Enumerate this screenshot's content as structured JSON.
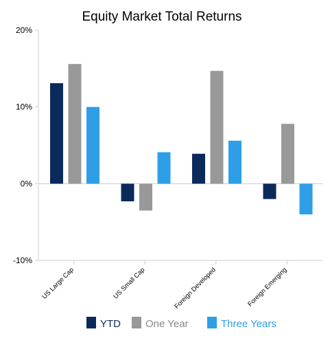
{
  "chart_data": {
    "type": "bar",
    "title": "Equity Market Total Returns",
    "xlabel": "",
    "ylabel": "",
    "categories": [
      "US Large Cap",
      "US Small Cap",
      "Foreign Developed",
      "Foreign Emerging"
    ],
    "series": [
      {
        "name": "YTD",
        "color": "#0b2a5c",
        "values": [
          13.1,
          -2.3,
          3.9,
          -2.0
        ]
      },
      {
        "name": "One Year",
        "color": "#999999",
        "values": [
          15.6,
          -3.5,
          14.7,
          7.8
        ]
      },
      {
        "name": "Three Years",
        "color": "#2e9fe6",
        "values": [
          10.0,
          4.1,
          5.6,
          -4.0
        ]
      }
    ],
    "ylim": [
      -10,
      20
    ],
    "yticks": [
      {
        "value": -10,
        "label": "-10%"
      },
      {
        "value": 0,
        "label": "0%"
      },
      {
        "value": 10,
        "label": "10%"
      },
      {
        "value": 20,
        "label": "20%"
      }
    ],
    "legend_position": "bottom",
    "legend_text_color": "#888888",
    "axis_color": "#cccccc",
    "grid": false
  }
}
